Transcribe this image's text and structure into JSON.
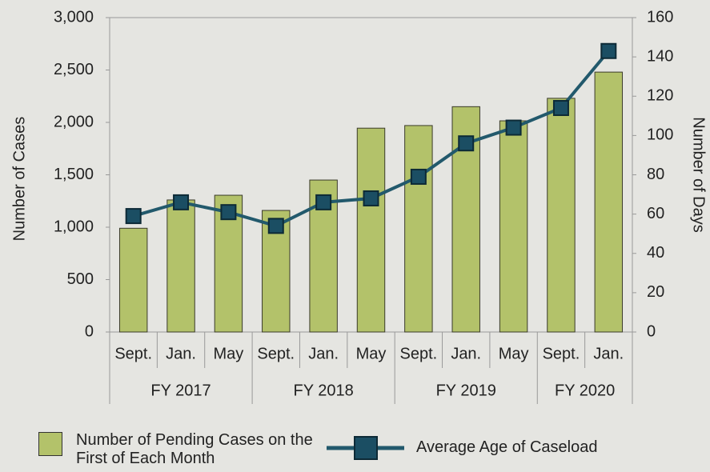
{
  "chart_data": {
    "type": "bar_line",
    "categories": [
      "Sept.",
      "Jan.",
      "May",
      "Sept.",
      "Jan.",
      "May",
      "Sept.",
      "Jan.",
      "May",
      "Sept.",
      "Jan."
    ],
    "category_groups": [
      "FY 2017",
      "FY 2017",
      "FY 2017",
      "FY 2018",
      "FY 2018",
      "FY 2018",
      "FY 2019",
      "FY 2019",
      "FY 2019",
      "FY 2020",
      "FY 2020"
    ],
    "series": [
      {
        "name": "Number of Pending Cases on the First of Each Month",
        "type": "bar",
        "axis": "y",
        "color": "#b3c26a",
        "values": [
          990,
          1260,
          1305,
          1160,
          1450,
          1945,
          1970,
          2150,
          2015,
          2230,
          2480
        ]
      },
      {
        "name": "Average Age of Caseload",
        "type": "line",
        "axis": "y2",
        "color": "#22596c",
        "values": [
          59,
          66,
          61,
          54,
          66,
          68,
          79,
          96,
          104,
          114,
          143
        ]
      }
    ],
    "ylabel": "Number of Cases",
    "y2label": "Number of Days",
    "ylim": [
      0,
      3000
    ],
    "yticks": [
      0,
      500,
      {
        "value": 1000,
        "label": "1,000"
      },
      {
        "value": 1500,
        "label": "1,500"
      },
      {
        "value": 2000,
        "label": "2,000"
      },
      {
        "value": 2500,
        "label": "2,500"
      },
      {
        "value": 3000,
        "label": "3,000"
      }
    ],
    "y2lim": [
      0,
      160
    ],
    "y2ticks": [
      0,
      20,
      40,
      60,
      80,
      100,
      120,
      140,
      160
    ],
    "grid": false,
    "legend": "bottom"
  }
}
